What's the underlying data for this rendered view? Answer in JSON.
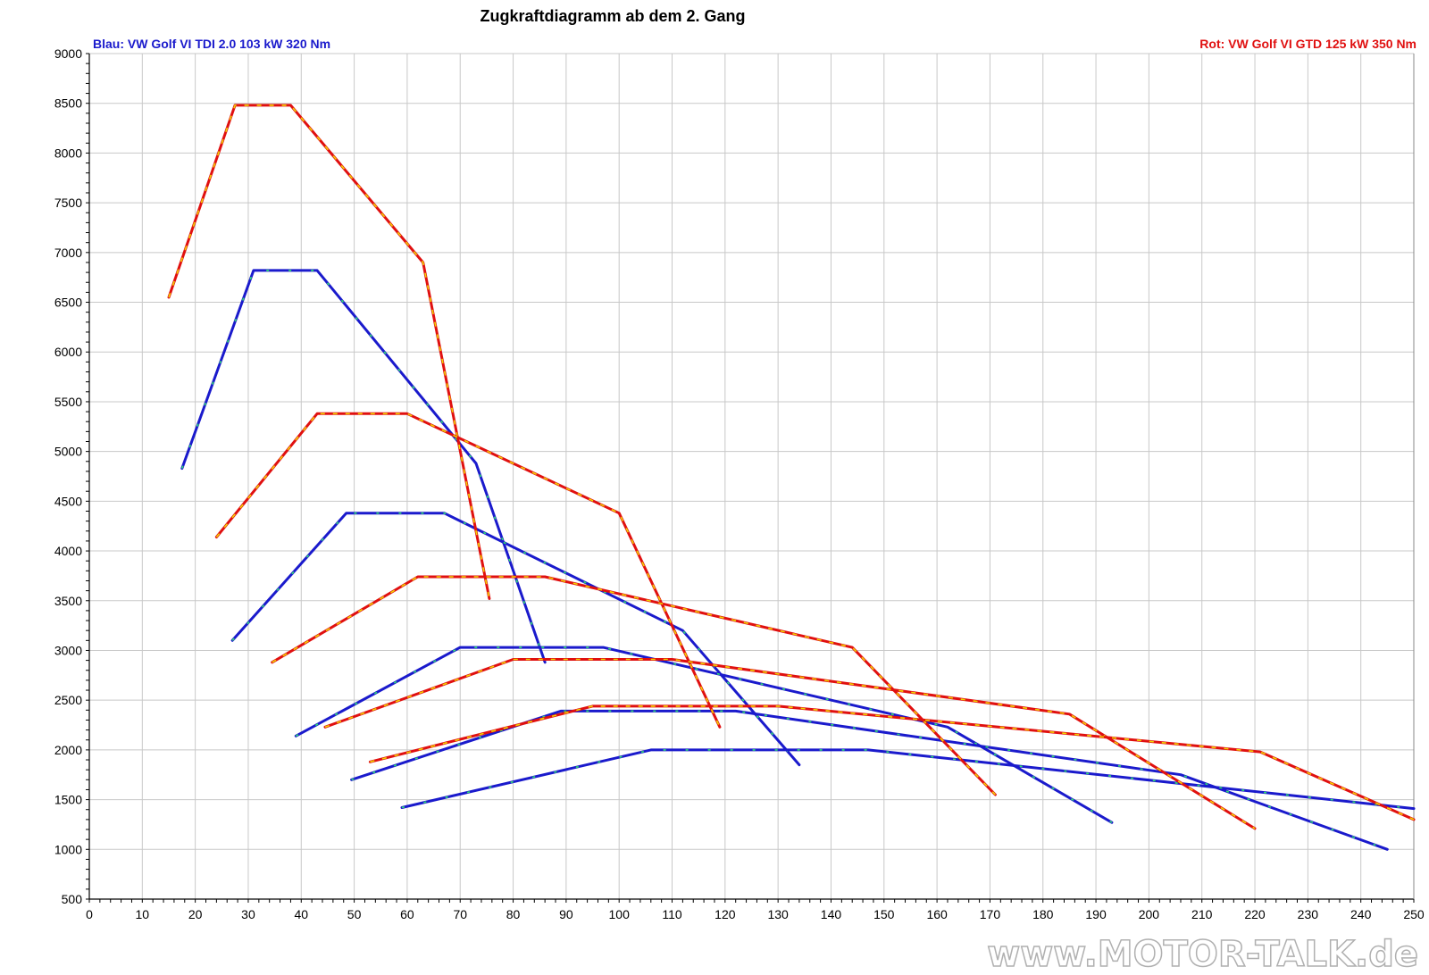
{
  "chart_data": {
    "type": "line",
    "title": "Zugkraftdiagramm ab dem 2. Gang",
    "legend_left": "Blau: VW Golf VI TDI 2.0 103 kW 320 Nm",
    "legend_right": "Rot: VW Golf VI GTD 125 kW 350 Nm",
    "legend_left_color": "#1a1acc",
    "legend_right_color": "#e01010",
    "watermark": "www.MOTOR-TALK.de",
    "xlim": [
      0,
      250
    ],
    "ylim": [
      500,
      9000
    ],
    "x_ticks": [
      "0",
      "10",
      "20",
      "30",
      "40",
      "50",
      "60",
      "70",
      "80",
      "90",
      "100",
      "110",
      "120",
      "130",
      "140",
      "150",
      "160",
      "170",
      "180",
      "190",
      "200",
      "210",
      "220",
      "230",
      "240",
      "250"
    ],
    "y_ticks": [
      "500",
      "1000",
      "1500",
      "2000",
      "2500",
      "3000",
      "3500",
      "4000",
      "4500",
      "5000",
      "5500",
      "6000",
      "6500",
      "7000",
      "7500",
      "8000",
      "8500",
      "9000"
    ],
    "grid": true,
    "colors": {
      "blue": "#1a1acc",
      "red": "#e01010",
      "red_dash": "#f2d400",
      "blue_dash": "#30e070"
    },
    "series": [
      {
        "group": "blue",
        "gear": 2,
        "points": [
          [
            17.5,
            4830
          ],
          [
            31,
            6820
          ],
          [
            43,
            6820
          ],
          [
            73,
            4880
          ],
          [
            86,
            2880
          ]
        ]
      },
      {
        "group": "blue",
        "gear": 3,
        "points": [
          [
            27,
            3100
          ],
          [
            48.5,
            4380
          ],
          [
            67,
            4380
          ],
          [
            112,
            3200
          ],
          [
            134,
            1850
          ]
        ]
      },
      {
        "group": "blue",
        "gear": 4,
        "points": [
          [
            39,
            2140
          ],
          [
            70,
            3030
          ],
          [
            97,
            3030
          ],
          [
            162,
            2230
          ],
          [
            193,
            1270
          ]
        ]
      },
      {
        "group": "blue",
        "gear": 5,
        "points": [
          [
            49.5,
            1700
          ],
          [
            89,
            2390
          ],
          [
            122,
            2390
          ],
          [
            206,
            1750
          ],
          [
            245,
            1000
          ]
        ]
      },
      {
        "group": "blue",
        "gear": 6,
        "points": [
          [
            59,
            1420
          ],
          [
            106,
            2000
          ],
          [
            147,
            2000
          ],
          [
            250,
            1410
          ]
        ]
      },
      {
        "group": "red",
        "gear": 2,
        "points": [
          [
            15,
            6550
          ],
          [
            27.5,
            8480
          ],
          [
            38,
            8480
          ],
          [
            63,
            6900
          ],
          [
            75.5,
            3520
          ]
        ]
      },
      {
        "group": "red",
        "gear": 3,
        "points": [
          [
            24,
            4140
          ],
          [
            43,
            5380
          ],
          [
            60,
            5380
          ],
          [
            100,
            4380
          ],
          [
            119,
            2230
          ]
        ]
      },
      {
        "group": "red",
        "gear": 4,
        "points": [
          [
            34.5,
            2880
          ],
          [
            62,
            3740
          ],
          [
            86,
            3740
          ],
          [
            144,
            3030
          ],
          [
            171,
            1550
          ]
        ]
      },
      {
        "group": "red",
        "gear": 5,
        "points": [
          [
            44.5,
            2230
          ],
          [
            80,
            2910
          ],
          [
            110,
            2910
          ],
          [
            185,
            2360
          ],
          [
            220,
            1210
          ]
        ]
      },
      {
        "group": "red",
        "gear": 6,
        "points": [
          [
            53,
            1880
          ],
          [
            95,
            2440
          ],
          [
            130,
            2440
          ],
          [
            221,
            1980
          ],
          [
            250,
            1300
          ]
        ]
      }
    ]
  }
}
